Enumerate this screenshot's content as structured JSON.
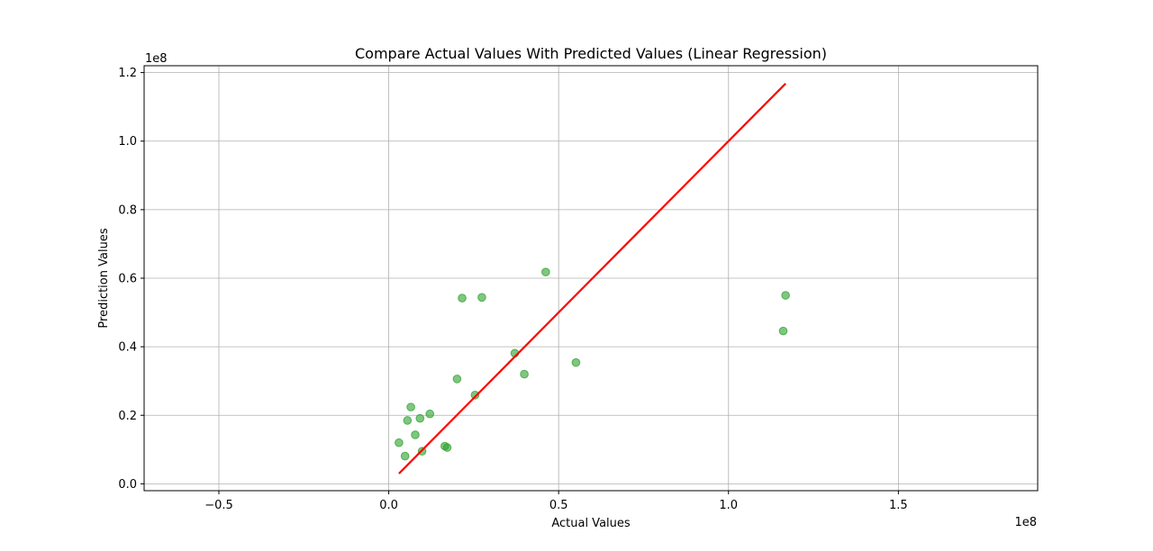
{
  "chart_data": {
    "type": "scatter",
    "title": "Compare Actual Values With Predicted Values (Linear Regression)",
    "xlabel": "Actual Values",
    "ylabel": "Prediction Values",
    "x_offset_label": "1e8",
    "y_offset_label": "1e8",
    "xlim": [
      -0.72,
      1.91
    ],
    "ylim": [
      -0.02,
      1.22
    ],
    "units_multiplier": 100000000,
    "xticks": [
      -0.5,
      0.0,
      0.5,
      1.0,
      1.5
    ],
    "xtick_labels": [
      "−0.5",
      "0.0",
      "0.5",
      "1.0",
      "1.5"
    ],
    "yticks": [
      0.0,
      0.2,
      0.4,
      0.6,
      0.8,
      1.0,
      1.2
    ],
    "ytick_labels": [
      "0.0",
      "0.2",
      "0.4",
      "0.6",
      "0.8",
      "1.0",
      "1.2"
    ],
    "grid": true,
    "series": [
      {
        "kind": "points",
        "color": "#2ca02c",
        "x": [
          0.03,
          0.048,
          0.055,
          0.065,
          0.078,
          0.092,
          0.098,
          0.121,
          0.165,
          0.172,
          0.201,
          0.216,
          0.254,
          0.274,
          0.371,
          0.399,
          0.462,
          0.551,
          1.161,
          1.168
        ],
        "y": [
          0.12,
          0.081,
          0.185,
          0.224,
          0.143,
          0.191,
          0.095,
          0.204,
          0.11,
          0.106,
          0.306,
          0.542,
          0.259,
          0.544,
          0.381,
          0.32,
          0.618,
          0.354,
          0.446,
          0.55
        ]
      },
      {
        "kind": "line",
        "color": "#ff0000",
        "x": [
          0.03,
          1.168
        ],
        "y": [
          0.03,
          1.168
        ]
      }
    ]
  }
}
